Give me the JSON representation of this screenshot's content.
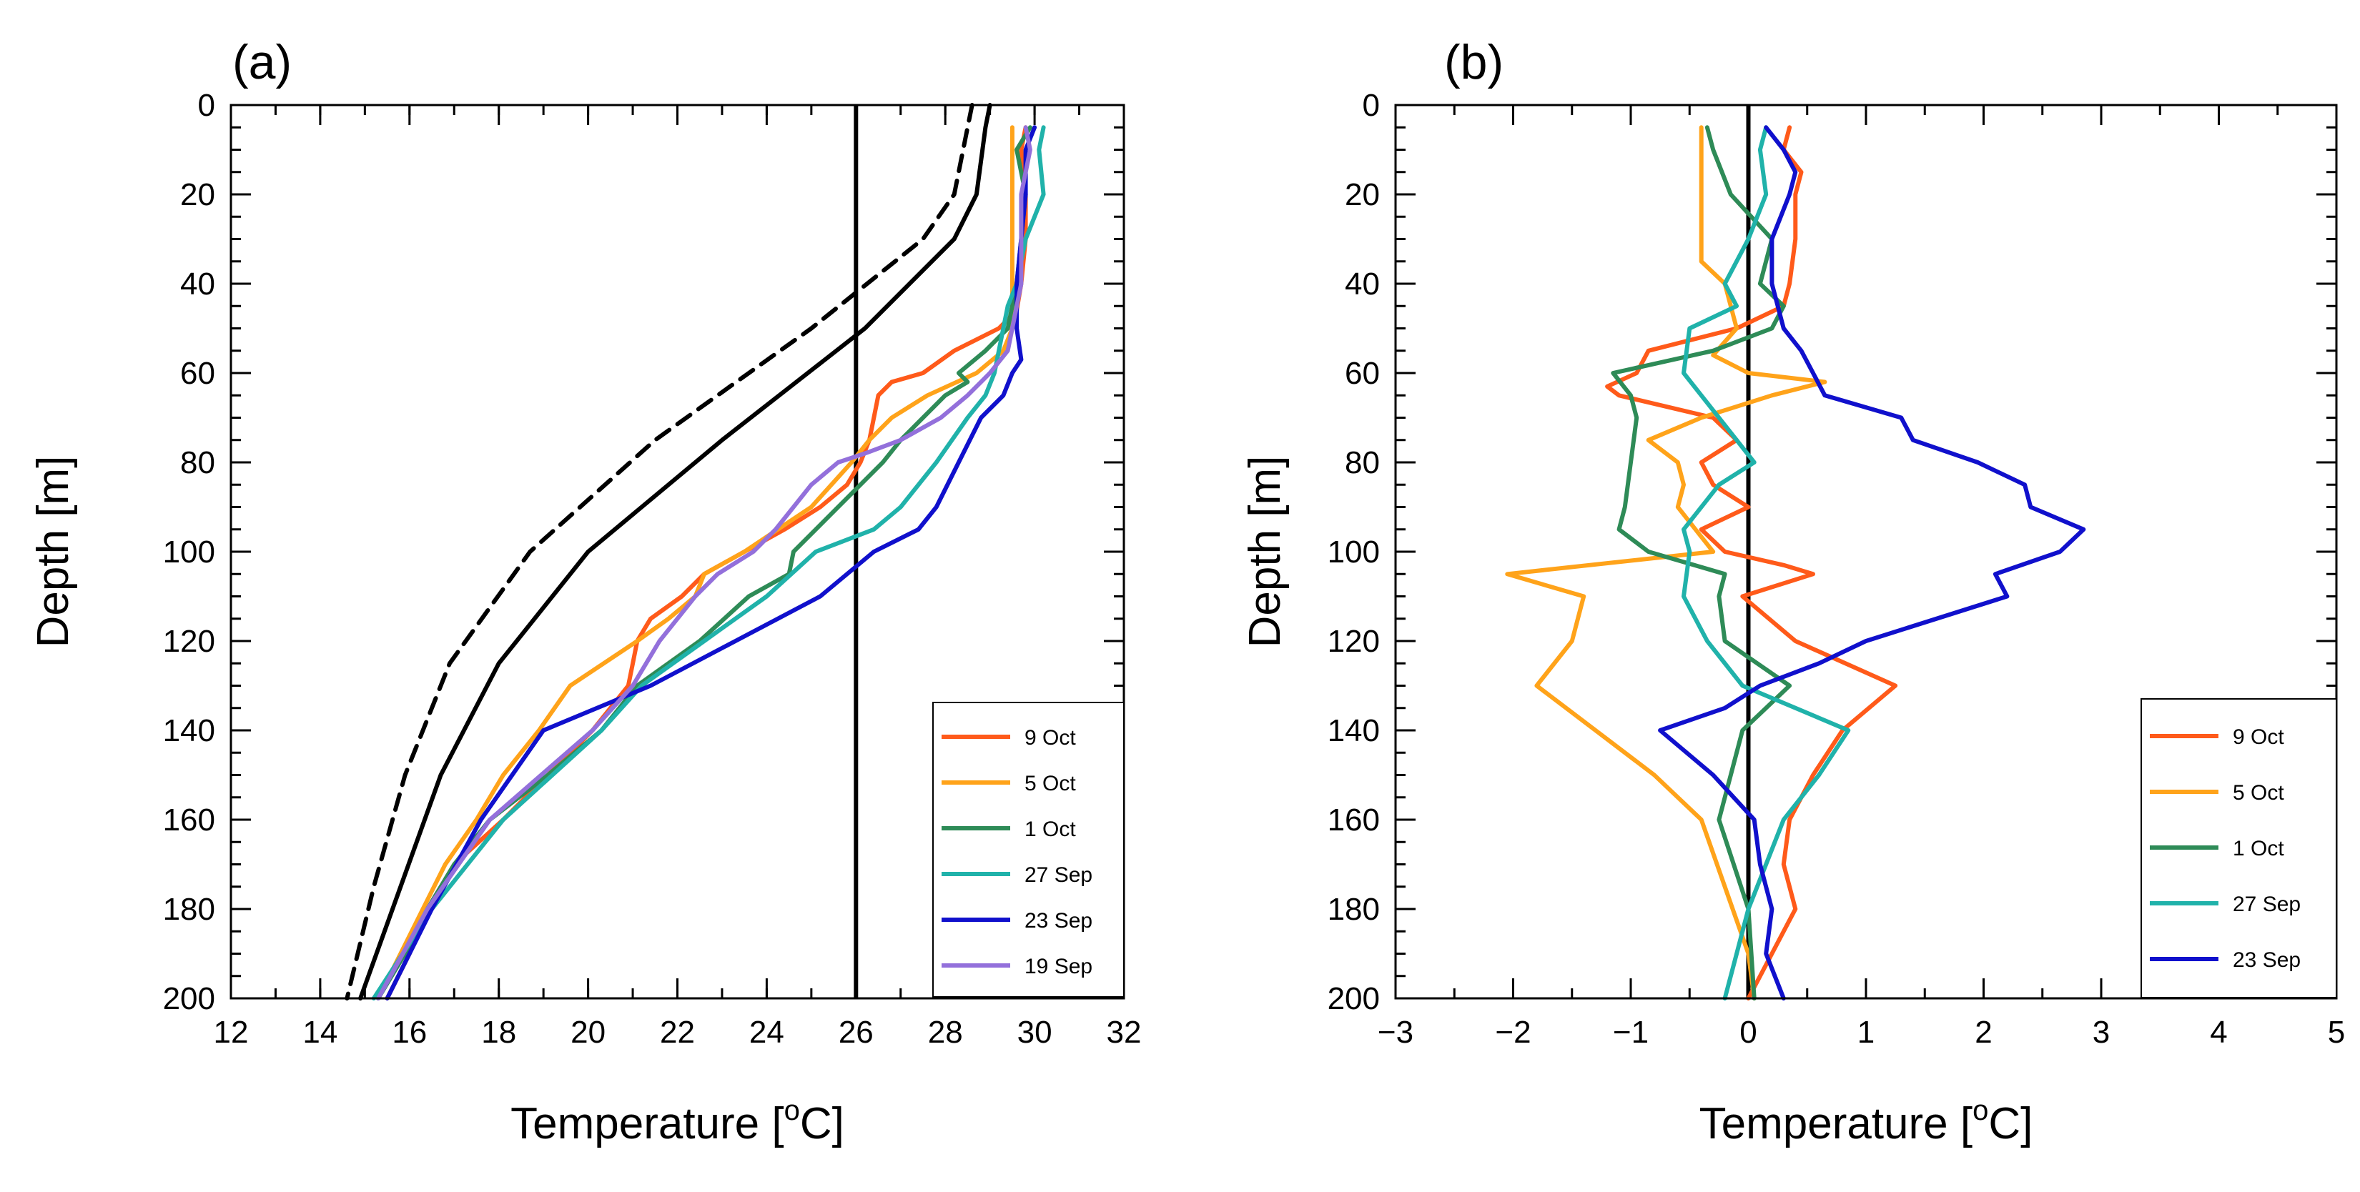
{
  "chart_data": [
    {
      "panel_label": "(a)",
      "type": "line",
      "orientation": "vertical-profile",
      "xlabel": "Temperature [",
      "xlabel_sup": "o",
      "xlabel_tail": "C]",
      "ylabel": "Depth [m]",
      "xlim": [
        12,
        32
      ],
      "ylim": [
        0,
        200
      ],
      "y_inverted": true,
      "xticks": [
        "12",
        "14",
        "16",
        "18",
        "20",
        "22",
        "24",
        "26",
        "28",
        "30",
        "32"
      ],
      "yticks": [
        "0",
        "20",
        "40",
        "60",
        "80",
        "100",
        "120",
        "140",
        "160",
        "180",
        "200"
      ],
      "legend_position": "bottom-right",
      "reference_line": {
        "x": 26,
        "color": "#000000"
      },
      "series": [
        {
          "name": "9 Oct",
          "color": "#ff5a1a",
          "in_legend": true,
          "dash": "",
          "depth": [
            5,
            10,
            20,
            30,
            40,
            46,
            50,
            55,
            60,
            62,
            65,
            70,
            75,
            80,
            85,
            90,
            95,
            100,
            105,
            110,
            115,
            120,
            125,
            130,
            140,
            150,
            160,
            170,
            180,
            190,
            200
          ],
          "temp": [
            29.8,
            29.7,
            29.8,
            29.8,
            29.7,
            29.6,
            29.2,
            28.2,
            27.5,
            26.8,
            26.5,
            26.4,
            26.3,
            26.1,
            25.8,
            25.2,
            24.4,
            23.5,
            22.6,
            22.1,
            21.4,
            21.1,
            21.0,
            20.9,
            20.1,
            19.1,
            18.1,
            17.0,
            16.4,
            16.0,
            15.5
          ]
        },
        {
          "name": "5 Oct",
          "color": "#ffa31a",
          "in_legend": true,
          "dash": "",
          "depth": [
            5,
            20,
            40,
            50,
            55,
            60,
            65,
            70,
            75,
            80,
            90,
            100,
            105,
            110,
            115,
            120,
            130,
            140,
            150,
            160,
            170,
            180,
            190,
            200
          ],
          "temp": [
            29.5,
            29.5,
            29.5,
            29.5,
            29.3,
            28.7,
            27.6,
            26.8,
            26.3,
            25.9,
            25.0,
            23.5,
            22.6,
            22.4,
            21.8,
            21.1,
            19.6,
            18.9,
            18.1,
            17.5,
            16.8,
            16.3,
            15.8,
            15.3
          ]
        },
        {
          "name": "1 Oct",
          "color": "#2e8b57",
          "in_legend": true,
          "dash": "",
          "depth": [
            5,
            10,
            20,
            30,
            40,
            50,
            55,
            60,
            62,
            65,
            70,
            75,
            80,
            90,
            100,
            105,
            110,
            120,
            130,
            140,
            150,
            160,
            170,
            180,
            190,
            200
          ],
          "temp": [
            29.9,
            29.6,
            29.8,
            29.7,
            29.6,
            29.4,
            28.9,
            28.3,
            28.5,
            28.0,
            27.5,
            27.0,
            26.6,
            25.6,
            24.6,
            24.5,
            23.6,
            22.5,
            21.1,
            20.3,
            19.1,
            17.8,
            17.0,
            16.4,
            15.9,
            15.3
          ]
        },
        {
          "name": "27 Sep",
          "color": "#20b2aa",
          "in_legend": true,
          "dash": "",
          "depth": [
            5,
            10,
            20,
            30,
            40,
            45,
            55,
            60,
            65,
            70,
            80,
            90,
            95,
            100,
            110,
            120,
            130,
            140,
            160,
            180,
            200
          ],
          "temp": [
            30.2,
            30.1,
            30.2,
            29.8,
            29.6,
            29.4,
            29.2,
            29.1,
            28.9,
            28.5,
            27.8,
            27.0,
            26.4,
            25.1,
            24.0,
            22.6,
            21.2,
            20.3,
            18.1,
            16.5,
            15.2
          ]
        },
        {
          "name": "23 Sep",
          "color": "#1010cc",
          "in_legend": true,
          "dash": "",
          "depth": [
            5,
            10,
            20,
            30,
            40,
            50,
            57,
            60,
            65,
            70,
            80,
            90,
            95,
            100,
            110,
            120,
            130,
            140,
            160,
            180,
            200
          ],
          "temp": [
            30.0,
            29.8,
            29.8,
            29.7,
            29.6,
            29.6,
            29.7,
            29.5,
            29.3,
            28.8,
            28.3,
            27.8,
            27.4,
            26.4,
            25.2,
            23.3,
            21.4,
            19.0,
            17.6,
            16.5,
            15.5
          ]
        },
        {
          "name": "19 Sep",
          "color": "#9370db",
          "in_legend": true,
          "dash": "",
          "depth": [
            5,
            10,
            20,
            30,
            40,
            50,
            55,
            60,
            62,
            65,
            70,
            75,
            78,
            80,
            85,
            90,
            95,
            100,
            105,
            110,
            120,
            130,
            140,
            160,
            180,
            200
          ],
          "temp": [
            29.8,
            29.9,
            29.7,
            29.7,
            29.7,
            29.5,
            29.4,
            29.0,
            28.8,
            28.5,
            27.9,
            27.0,
            26.2,
            25.6,
            25.0,
            24.6,
            24.2,
            23.7,
            22.9,
            22.4,
            21.6,
            21.0,
            20.1,
            17.8,
            16.4,
            15.3
          ]
        },
        {
          "name": "",
          "color": "#000000",
          "in_legend": false,
          "dash": "",
          "depth": [
            0,
            5,
            20,
            30,
            50,
            75,
            100,
            125,
            150,
            175,
            200
          ],
          "temp": [
            29.0,
            28.9,
            28.7,
            28.2,
            26.2,
            23.0,
            20.0,
            18.0,
            16.7,
            15.8,
            14.9
          ]
        },
        {
          "name": "",
          "color": "#000000",
          "in_legend": false,
          "dash": "22,14",
          "depth": [
            0,
            5,
            20,
            30,
            50,
            75,
            100,
            125,
            150,
            175,
            200
          ],
          "temp": [
            28.6,
            28.5,
            28.2,
            27.5,
            25.0,
            21.5,
            18.7,
            16.9,
            15.9,
            15.2,
            14.6
          ]
        }
      ]
    },
    {
      "panel_label": "(b)",
      "type": "line",
      "orientation": "vertical-profile",
      "xlabel": "Temperature [",
      "xlabel_sup": "o",
      "xlabel_tail": "C]",
      "ylabel": "Depth [m]",
      "xlim": [
        -3,
        5
      ],
      "ylim": [
        0,
        200
      ],
      "y_inverted": true,
      "xticks": [
        "−3",
        "−2",
        "−1",
        "0",
        "1",
        "2",
        "3",
        "4",
        "5"
      ],
      "yticks": [
        "0",
        "20",
        "40",
        "60",
        "80",
        "100",
        "120",
        "140",
        "160",
        "180",
        "200"
      ],
      "legend_position": "bottom-right",
      "reference_line": {
        "x": 0,
        "color": "#000000"
      },
      "series": [
        {
          "name": "9 Oct",
          "color": "#ff5a1a",
          "in_legend": true,
          "dash": "",
          "depth": [
            5,
            10,
            15,
            20,
            30,
            40,
            45,
            50,
            55,
            60,
            63,
            65,
            70,
            75,
            80,
            85,
            90,
            95,
            100,
            103,
            105,
            110,
            120,
            130,
            140,
            150,
            160,
            170,
            180,
            190,
            200
          ],
          "temp": [
            0.35,
            0.3,
            0.45,
            0.4,
            0.4,
            0.35,
            0.3,
            -0.1,
            -0.85,
            -0.95,
            -1.2,
            -1.1,
            -0.3,
            -0.1,
            -0.4,
            -0.3,
            0.0,
            -0.4,
            -0.2,
            0.3,
            0.55,
            -0.05,
            0.4,
            1.25,
            0.8,
            0.55,
            0.35,
            0.3,
            0.4,
            0.2,
            0.0
          ]
        },
        {
          "name": "5 Oct",
          "color": "#ffa31a",
          "in_legend": true,
          "dash": "",
          "depth": [
            5,
            20,
            35,
            40,
            50,
            56,
            60,
            62,
            65,
            70,
            75,
            80,
            85,
            90,
            95,
            100,
            105,
            110,
            120,
            130,
            140,
            150,
            160,
            175,
            190,
            200
          ],
          "temp": [
            -0.4,
            -0.4,
            -0.4,
            -0.2,
            -0.1,
            -0.3,
            0.0,
            0.65,
            0.2,
            -0.4,
            -0.85,
            -0.6,
            -0.55,
            -0.6,
            -0.45,
            -0.3,
            -2.05,
            -1.4,
            -1.5,
            -1.8,
            -1.3,
            -0.8,
            -0.4,
            -0.2,
            0.0,
            0.05
          ]
        },
        {
          "name": "1 Oct",
          "color": "#2e8b57",
          "in_legend": true,
          "dash": "",
          "depth": [
            5,
            10,
            20,
            30,
            40,
            45,
            50,
            55,
            60,
            65,
            70,
            80,
            90,
            95,
            100,
            105,
            110,
            120,
            130,
            140,
            160,
            180,
            200
          ],
          "temp": [
            -0.35,
            -0.3,
            -0.15,
            0.2,
            0.1,
            0.3,
            0.2,
            -0.3,
            -1.15,
            -1.0,
            -0.95,
            -1.0,
            -1.05,
            -1.1,
            -0.85,
            -0.2,
            -0.25,
            -0.2,
            0.35,
            -0.05,
            -0.25,
            0.0,
            0.05
          ]
        },
        {
          "name": "27 Sep",
          "color": "#20b2aa",
          "in_legend": true,
          "dash": "",
          "depth": [
            5,
            10,
            20,
            30,
            40,
            45,
            50,
            60,
            65,
            75,
            80,
            85,
            95,
            100,
            110,
            120,
            130,
            140,
            150,
            160,
            170,
            180,
            190,
            200
          ],
          "temp": [
            0.15,
            0.1,
            0.15,
            0.0,
            -0.2,
            -0.1,
            -0.5,
            -0.55,
            -0.4,
            -0.1,
            0.05,
            -0.25,
            -0.55,
            -0.5,
            -0.55,
            -0.35,
            -0.05,
            0.85,
            0.6,
            0.3,
            0.15,
            0.0,
            -0.1,
            -0.2
          ]
        },
        {
          "name": "23 Sep",
          "color": "#1010cc",
          "in_legend": true,
          "dash": "",
          "depth": [
            5,
            10,
            15,
            20,
            30,
            40,
            50,
            55,
            60,
            65,
            70,
            75,
            80,
            85,
            90,
            95,
            100,
            105,
            110,
            120,
            125,
            130,
            135,
            140,
            150,
            160,
            170,
            180,
            190,
            200
          ],
          "temp": [
            0.15,
            0.3,
            0.4,
            0.35,
            0.2,
            0.2,
            0.3,
            0.45,
            0.55,
            0.65,
            1.3,
            1.4,
            1.95,
            2.35,
            2.4,
            2.85,
            2.65,
            2.1,
            2.2,
            1.0,
            0.6,
            0.1,
            -0.2,
            -0.75,
            -0.3,
            0.05,
            0.1,
            0.2,
            0.15,
            0.3
          ]
        }
      ]
    }
  ]
}
